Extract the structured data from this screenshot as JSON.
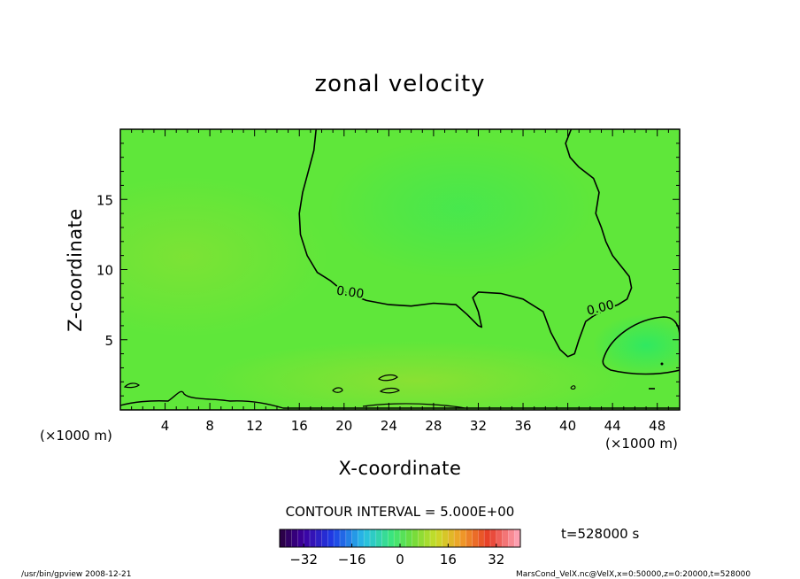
{
  "chart_data": {
    "type": "heatmap",
    "title": "zonal velocity",
    "xlabel": "X-coordinate",
    "ylabel": "Z-coordinate",
    "x_units": "(×1000 m)",
    "y_units": "(×1000 m)",
    "xlim": [
      0,
      50
    ],
    "ylim": [
      0,
      20
    ],
    "x_ticks": [
      4,
      8,
      12,
      16,
      20,
      24,
      28,
      32,
      36,
      40,
      44,
      48
    ],
    "y_ticks": [
      5,
      10,
      15
    ],
    "contour_interval_text": "CONTOUR INTERVAL = 5.000E+00",
    "contour_labels": [
      {
        "text": "0.00",
        "x": 20.5,
        "z": 8.1
      },
      {
        "text": "0.00",
        "x": 43.0,
        "z": 7.0
      }
    ],
    "contour_zero_line": [
      [
        17.5,
        20
      ],
      [
        17.3,
        18.5
      ],
      [
        16.8,
        17
      ],
      [
        16.3,
        15.5
      ],
      [
        16.0,
        14
      ],
      [
        16.1,
        12.5
      ],
      [
        16.7,
        11
      ],
      [
        17.6,
        9.8
      ],
      [
        18.8,
        9.2
      ],
      [
        20.0,
        8.4
      ],
      [
        22.0,
        7.8
      ],
      [
        24.0,
        7.5
      ],
      [
        26.0,
        7.4
      ],
      [
        28.0,
        7.6
      ],
      [
        30.0,
        7.5
      ],
      [
        31.0,
        6.8
      ],
      [
        32.0,
        6.0
      ],
      [
        32.3,
        5.9
      ],
      [
        32.0,
        7.0
      ],
      [
        31.5,
        8.0
      ],
      [
        32.0,
        8.4
      ],
      [
        34.0,
        8.3
      ],
      [
        36.0,
        7.9
      ],
      [
        37.8,
        7.0
      ],
      [
        38.5,
        5.5
      ],
      [
        39.3,
        4.3
      ],
      [
        40.0,
        3.8
      ],
      [
        40.6,
        4.0
      ],
      [
        41.0,
        5.0
      ],
      [
        41.6,
        6.3
      ],
      [
        42.3,
        6.7
      ],
      [
        43.5,
        7.2
      ],
      [
        44.5,
        7.5
      ],
      [
        45.3,
        7.9
      ],
      [
        45.7,
        8.7
      ],
      [
        45.5,
        9.5
      ],
      [
        44.8,
        10.2
      ],
      [
        44.0,
        11.0
      ],
      [
        43.4,
        12.0
      ],
      [
        43.0,
        13.0
      ],
      [
        42.5,
        14.0
      ],
      [
        42.8,
        15.5
      ],
      [
        42.3,
        16.5
      ],
      [
        41.0,
        17.3
      ],
      [
        40.2,
        18.0
      ],
      [
        39.8,
        19.0
      ],
      [
        40.3,
        20
      ]
    ],
    "colorbar": {
      "ticks": [
        -32,
        -16,
        0,
        16,
        32
      ],
      "tick_labels": [
        "−32",
        "−16",
        "0",
        "16",
        "32"
      ],
      "range": [
        -40,
        40
      ]
    },
    "time_label": "t=528000 s",
    "footer_left": "/usr/bin/gpview   2008-12-21",
    "footer_right": "MarsCond_VelX.nc@VelX,x=0:50000,z=0:20000,t=528000",
    "colors": {
      "field_base": "#5fe73a",
      "field_positive": "#8ae030",
      "field_negative": "#32e856",
      "contour": "#000000"
    }
  }
}
